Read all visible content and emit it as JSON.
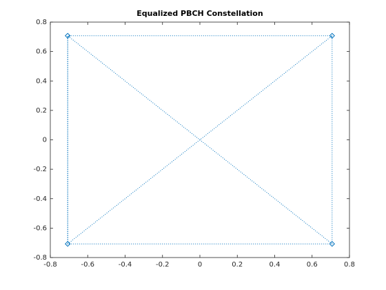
{
  "chart_data": {
    "type": "line",
    "title": "Equalized PBCH Constellation",
    "x": [
      0.7071,
      -0.7071,
      -0.7071,
      0.7071,
      0.7071,
      -0.7071,
      -0.7071,
      0.7071
    ],
    "values": [
      0.7071,
      0.7071,
      -0.7071,
      -0.7071,
      0.7071,
      -0.7071,
      0.7071,
      -0.7071
    ],
    "color": "#0072bd",
    "xlim": [
      -0.8,
      0.8
    ],
    "xticks": [
      -0.8,
      -0.6,
      -0.4,
      -0.2,
      0,
      0.2,
      0.4,
      0.6,
      0.8
    ],
    "ylim": [
      -0.8,
      0.8
    ],
    "yticks": [
      -0.8,
      -0.6,
      -0.4,
      -0.2,
      0,
      0.2,
      0.4,
      0.6,
      0.8
    ],
    "grid": false
  }
}
